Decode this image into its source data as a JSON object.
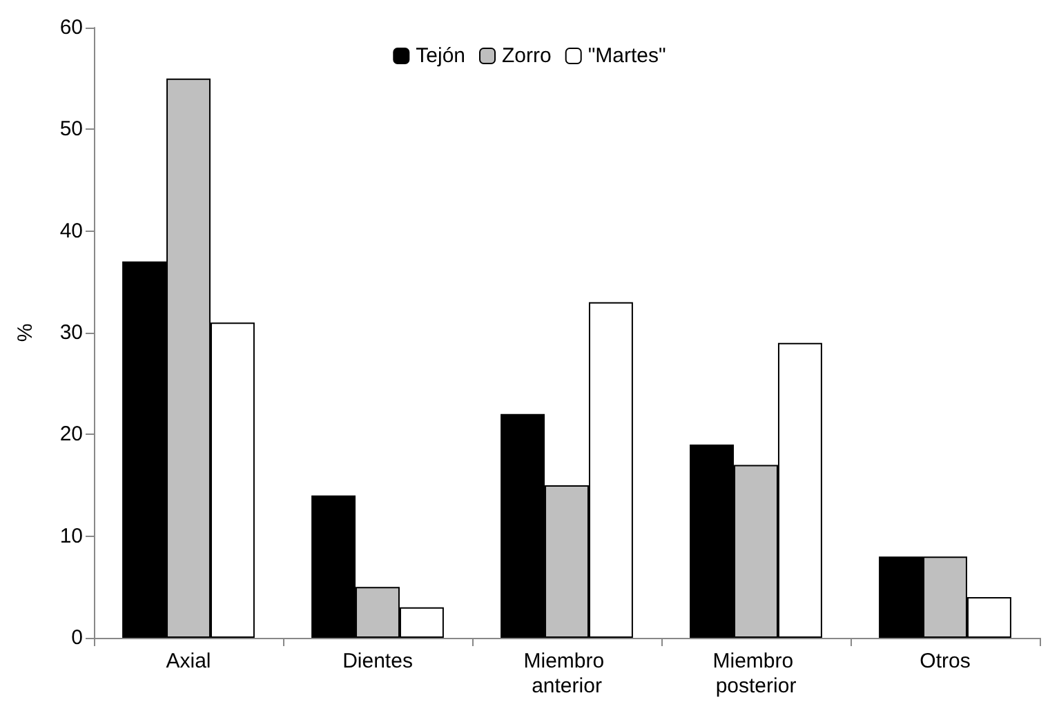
{
  "chart_data": {
    "type": "bar",
    "ylabel": "%",
    "categories": [
      "Axial",
      "Dientes",
      "Miembro anterior",
      "Miembro posterior",
      "Otros"
    ],
    "series": [
      {
        "name": "Tejón",
        "color": "#000000",
        "values": [
          37,
          14,
          22,
          19,
          8
        ]
      },
      {
        "name": "Zorro",
        "color": "#bfbfbf",
        "values": [
          55,
          5,
          15,
          17,
          8
        ]
      },
      {
        "name": "\"Martes\"",
        "color": "#ffffff",
        "values": [
          31,
          3,
          33,
          29,
          4
        ]
      }
    ],
    "ylim": [
      0,
      60
    ],
    "yticks": [
      0,
      10,
      20,
      30,
      40,
      50,
      60
    ],
    "grid": false,
    "legend": "top"
  }
}
